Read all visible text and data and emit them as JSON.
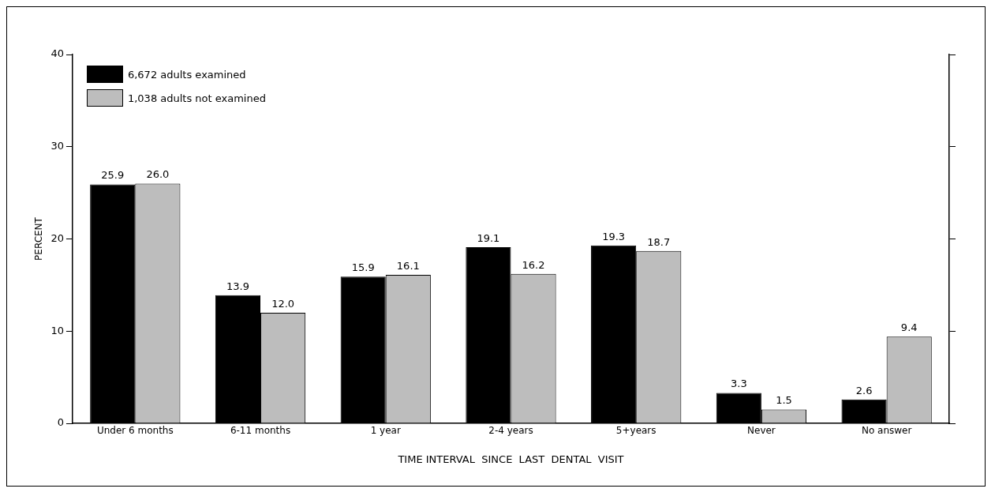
{
  "chart_data": {
    "type": "bar",
    "xlabel": "TIME INTERVAL  SINCE  LAST  DENTAL  VISIT",
    "ylabel": "PERCENT",
    "categories": [
      "Under 6 months",
      "6-11 months",
      "1 year",
      "2-4 years",
      "5+years",
      "Never",
      "No answer"
    ],
    "series": [
      {
        "name": "6,672  adults examined",
        "color": "#000000",
        "values": [
          25.9,
          13.9,
          15.9,
          19.1,
          19.3,
          3.3,
          2.6
        ],
        "value_labels": [
          "25.9",
          "13.9",
          "15.9",
          "19.1",
          "19.3",
          "3.3",
          "2.6"
        ]
      },
      {
        "name": "1,038  adults  not examined",
        "color": "#bdbdbd",
        "values": [
          26.0,
          12.0,
          16.1,
          16.2,
          18.7,
          1.5,
          9.4
        ],
        "value_labels": [
          "26.0",
          "12.0",
          "16.1",
          "16.2",
          "18.7",
          "1.5",
          "9.4"
        ]
      }
    ],
    "ylim": [
      0,
      40
    ],
    "yticks": [
      0,
      10,
      20,
      30,
      40
    ],
    "grid": false,
    "legend": "top left"
  }
}
